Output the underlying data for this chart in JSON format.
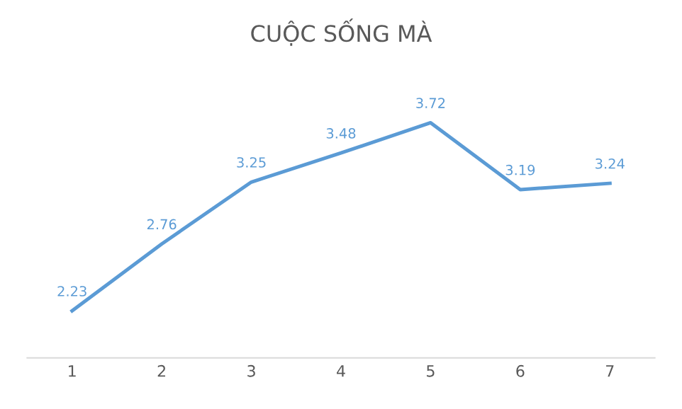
{
  "chart_data": {
    "type": "line",
    "title": "CUỘC SỐNG MÀ",
    "categories": [
      "1",
      "2",
      "3",
      "4",
      "5",
      "6",
      "7"
    ],
    "series": [
      {
        "color": "#5b9bd5",
        "values": [
          2.23,
          2.76,
          3.25,
          3.48,
          3.72,
          3.19,
          3.24
        ]
      }
    ],
    "tick_labels": "x",
    "data_labels": true,
    "grid": false,
    "legend": false,
    "line_style": "solid"
  }
}
